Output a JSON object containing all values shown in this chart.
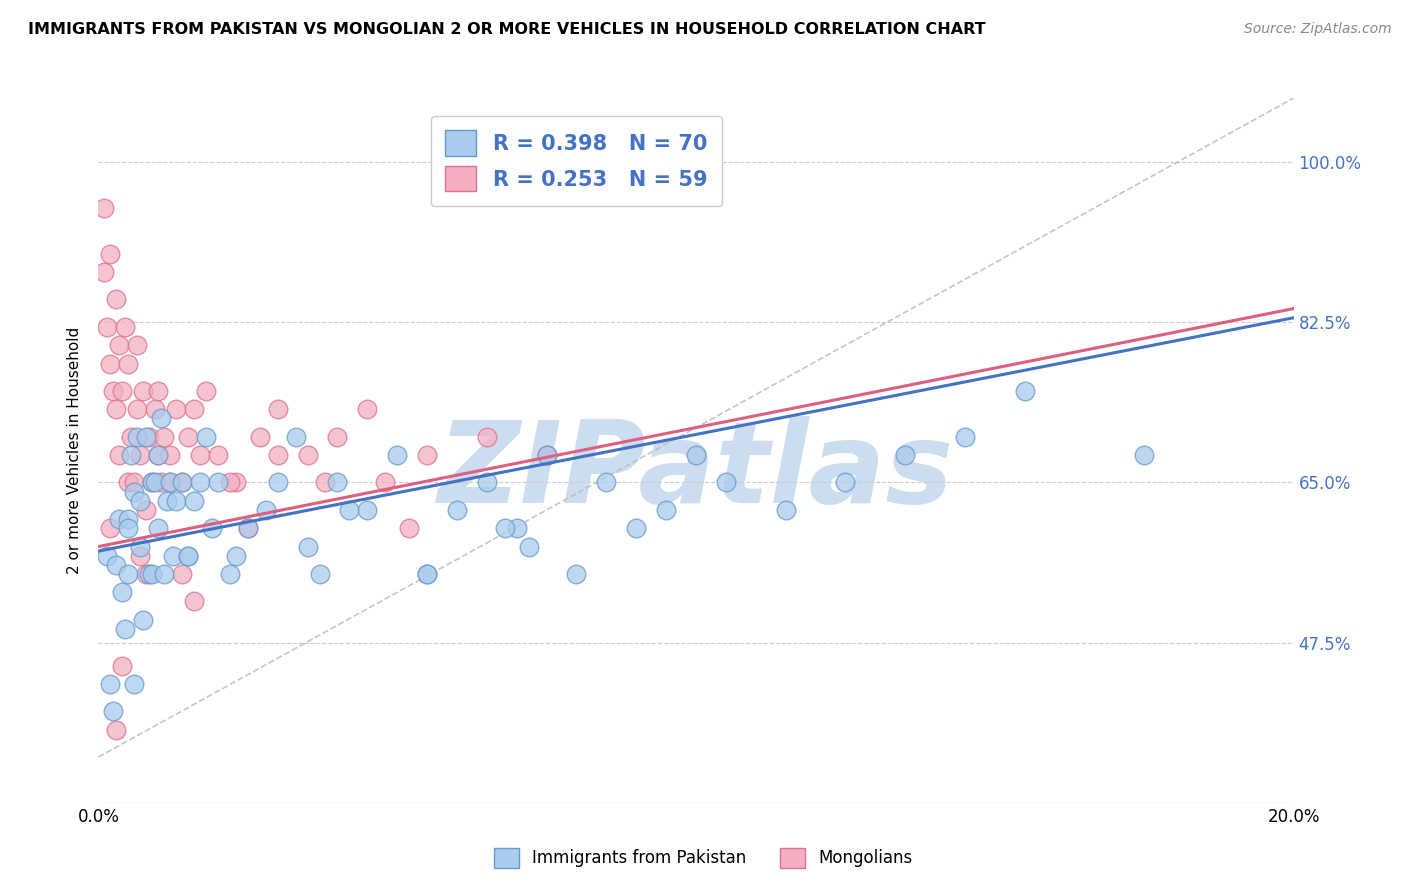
{
  "title": "IMMIGRANTS FROM PAKISTAN VS MONGOLIAN 2 OR MORE VEHICLES IN HOUSEHOLD CORRELATION CHART",
  "source": "Source: ZipAtlas.com",
  "ylabel": "2 or more Vehicles in Household",
  "series": [
    {
      "name": "Immigrants from Pakistan",
      "color": "#aaccee",
      "edge_color": "#6699cc",
      "R": 0.398,
      "N": 70,
      "line_color": "#4472c4"
    },
    {
      "name": "Mongolians",
      "color": "#f4b0c0",
      "edge_color": "#dd7090",
      "R": 0.253,
      "N": 59,
      "line_color": "#dd6080"
    }
  ],
  "xlim": [
    0.0,
    20.0
  ],
  "ylim": [
    30.0,
    107.0
  ],
  "yticks": [
    47.5,
    65.0,
    82.5,
    100.0
  ],
  "xticks": [
    0.0,
    5.0,
    10.0,
    15.0,
    20.0
  ],
  "xtick_labels": [
    "0.0%",
    "",
    "",
    "",
    "20.0%"
  ],
  "ytick_labels": [
    "47.5%",
    "65.0%",
    "82.5%",
    "100.0%"
  ],
  "watermark": "ZIPatlas",
  "watermark_color": "#ccddf0",
  "blue_line_x0": 0.0,
  "blue_line_y0": 57.5,
  "blue_line_x1": 20.0,
  "blue_line_y1": 83.0,
  "pink_line_x0": 0.0,
  "pink_line_y0": 58.0,
  "pink_line_x1": 20.0,
  "pink_line_y1": 84.0,
  "dash_line_x0": 0.0,
  "dash_line_y0": 35.0,
  "dash_line_x1": 20.0,
  "dash_line_y1": 107.0,
  "blue_scatter_x": [
    0.15,
    0.2,
    0.25,
    0.3,
    0.35,
    0.4,
    0.45,
    0.5,
    0.5,
    0.55,
    0.6,
    0.65,
    0.7,
    0.7,
    0.75,
    0.8,
    0.85,
    0.9,
    0.9,
    0.95,
    1.0,
    1.0,
    1.05,
    1.1,
    1.15,
    1.2,
    1.25,
    1.3,
    1.4,
    1.5,
    1.6,
    1.7,
    1.8,
    1.9,
    2.0,
    2.2,
    2.5,
    2.8,
    3.0,
    3.3,
    3.7,
    4.0,
    4.5,
    5.0,
    5.5,
    6.0,
    6.5,
    7.0,
    7.5,
    8.0,
    8.5,
    9.0,
    9.5,
    10.0,
    10.5,
    11.5,
    12.5,
    13.5,
    14.5,
    15.5,
    17.5,
    5.5,
    7.2,
    4.2,
    2.3,
    1.5,
    0.6,
    0.5,
    3.5,
    6.8
  ],
  "blue_scatter_y": [
    57,
    43,
    40,
    56,
    61,
    53,
    49,
    55,
    61,
    68,
    64,
    70,
    58,
    63,
    50,
    70,
    55,
    65,
    55,
    65,
    60,
    68,
    72,
    55,
    63,
    65,
    57,
    63,
    65,
    57,
    63,
    65,
    70,
    60,
    65,
    55,
    60,
    62,
    65,
    70,
    55,
    65,
    62,
    68,
    55,
    62,
    65,
    60,
    68,
    55,
    65,
    60,
    62,
    68,
    65,
    62,
    65,
    68,
    70,
    75,
    68,
    55,
    58,
    62,
    57,
    57,
    43,
    60,
    58,
    60
  ],
  "pink_scatter_x": [
    0.1,
    0.1,
    0.15,
    0.2,
    0.2,
    0.25,
    0.3,
    0.3,
    0.35,
    0.35,
    0.4,
    0.45,
    0.5,
    0.5,
    0.55,
    0.6,
    0.65,
    0.65,
    0.7,
    0.75,
    0.8,
    0.85,
    0.9,
    0.95,
    1.0,
    1.0,
    1.05,
    1.1,
    1.2,
    1.3,
    1.4,
    1.5,
    1.6,
    1.7,
    1.8,
    2.0,
    2.3,
    2.7,
    3.0,
    3.5,
    4.0,
    4.8,
    5.5,
    6.5,
    7.5,
    0.8,
    1.2,
    2.5,
    3.8,
    5.2,
    0.4,
    0.3,
    1.6,
    2.2,
    0.7,
    1.4,
    3.0,
    4.5,
    0.2
  ],
  "pink_scatter_y": [
    95,
    88,
    82,
    78,
    90,
    75,
    85,
    73,
    80,
    68,
    75,
    82,
    65,
    78,
    70,
    65,
    73,
    80,
    68,
    75,
    62,
    70,
    65,
    73,
    68,
    75,
    65,
    70,
    68,
    73,
    65,
    70,
    73,
    68,
    75,
    68,
    65,
    70,
    73,
    68,
    70,
    65,
    68,
    70,
    68,
    55,
    65,
    60,
    65,
    60,
    45,
    38,
    52,
    65,
    57,
    55,
    68,
    73,
    60
  ]
}
